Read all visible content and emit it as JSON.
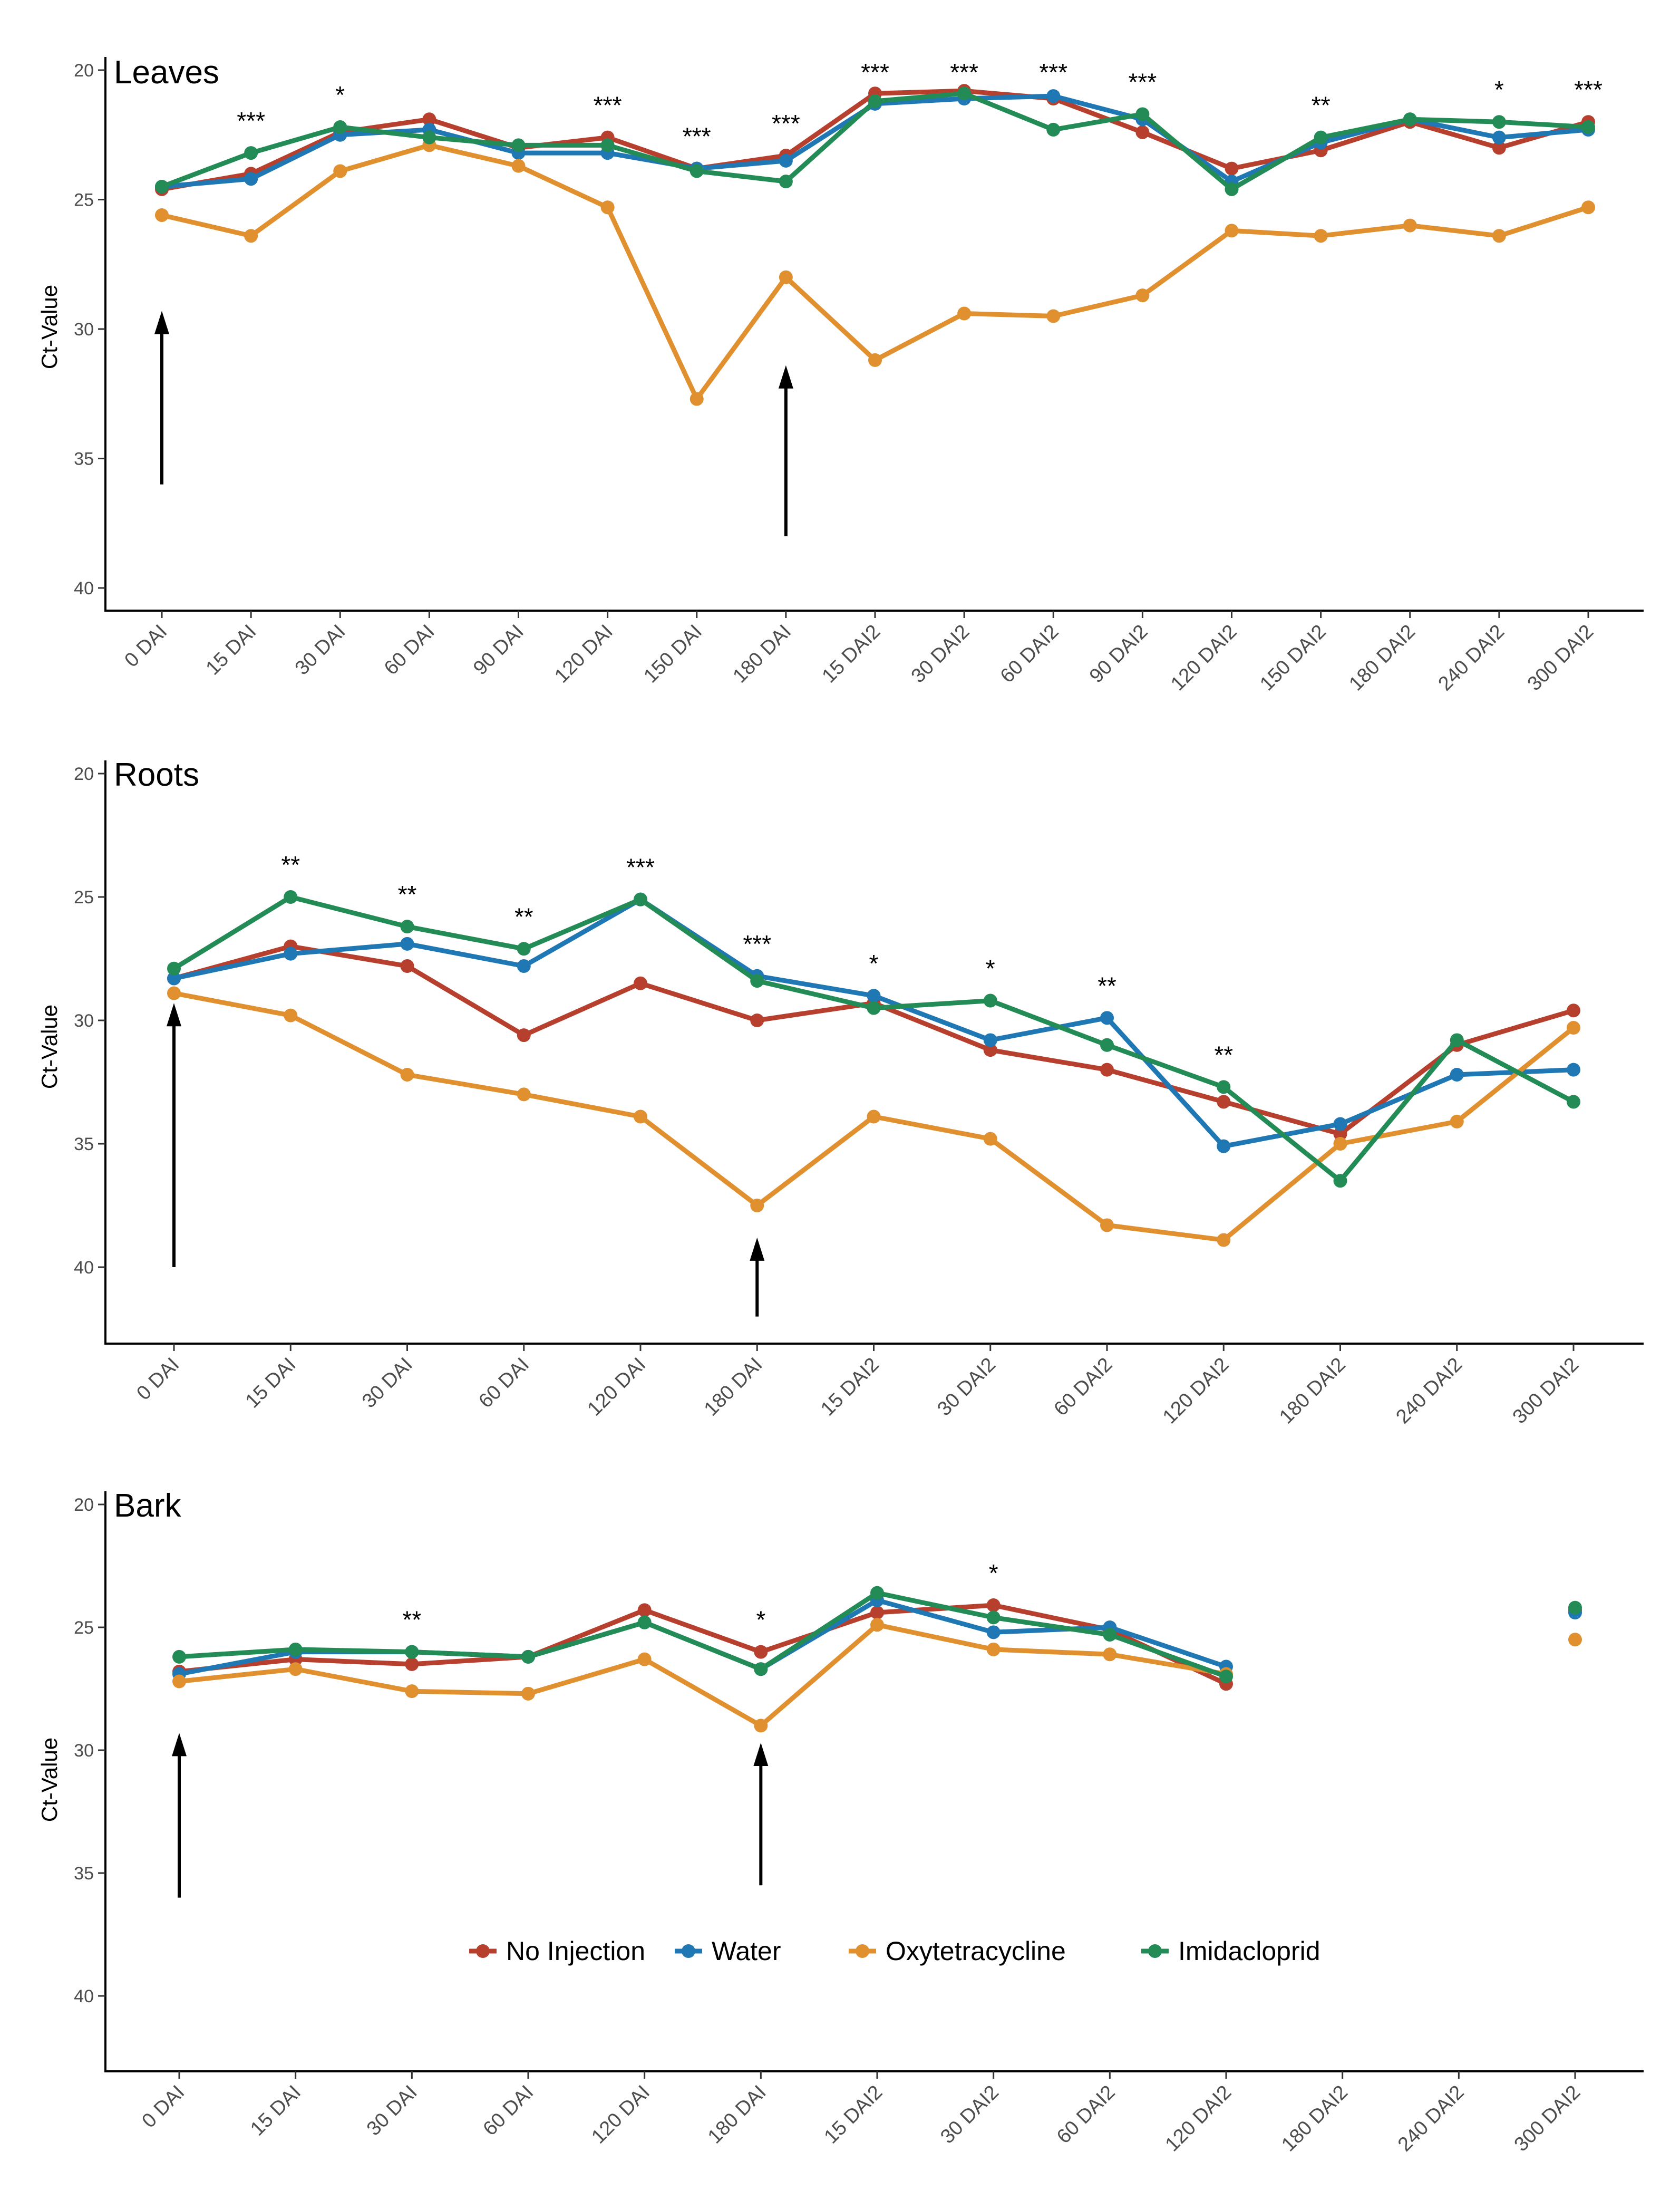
{
  "colors": {
    "No Injection": "#b63f2e",
    "Water": "#1f78b4",
    "Oxytetracycline": "#e0902e",
    "Imidacloprid": "#238b55"
  },
  "legend": [
    "No Injection",
    "Water",
    "Oxytetracycline",
    "Imidacloprid"
  ],
  "chart_data": [
    {
      "type": "line",
      "title": "Leaves",
      "ylabel": "Ct-Value",
      "ylim": [
        20,
        40
      ],
      "y_reversed": true,
      "yticks": [
        20,
        25,
        30,
        35,
        40
      ],
      "categories": [
        "0 DAI",
        "15 DAI",
        "30 DAI",
        "60 DAI",
        "90 DAI",
        "120 DAI",
        "150 DAI",
        "180 DAI",
        "15 DAI2",
        "30 DAI2",
        "60 DAI2",
        "90 DAI2",
        "120 DAI2",
        "150 DAI2",
        "180 DAI2",
        "240 DAI2",
        "300 DAI2"
      ],
      "significance": [
        "",
        "***",
        "*",
        "",
        "",
        "***",
        "***",
        "***",
        "***",
        "***",
        "***",
        "***",
        "",
        "**",
        "",
        "*",
        "***"
      ],
      "arrows_at": [
        [
          0,
          36
        ],
        [
          7,
          38
        ]
      ],
      "series": [
        {
          "name": "No Injection",
          "values": [
            24.6,
            24.0,
            22.4,
            21.9,
            23.0,
            22.6,
            23.8,
            23.3,
            20.9,
            20.8,
            21.1,
            22.4,
            23.8,
            23.1,
            22.0,
            23.0,
            22.0
          ]
        },
        {
          "name": "Water",
          "values": [
            24.5,
            24.2,
            22.5,
            22.3,
            23.2,
            23.2,
            23.8,
            23.5,
            21.3,
            21.1,
            21.0,
            21.9,
            24.3,
            22.8,
            21.9,
            22.6,
            22.3
          ]
        },
        {
          "name": "Oxytetracycline",
          "values": [
            25.6,
            26.4,
            23.9,
            22.9,
            23.7,
            25.3,
            32.7,
            28.0,
            31.2,
            29.4,
            29.5,
            28.7,
            26.2,
            26.4,
            26.0,
            26.4,
            25.3
          ]
        },
        {
          "name": "Imidacloprid",
          "values": [
            24.5,
            23.2,
            22.2,
            22.6,
            22.9,
            22.9,
            23.9,
            24.3,
            21.2,
            20.9,
            22.3,
            21.7,
            24.6,
            22.6,
            21.9,
            22.0,
            22.2
          ]
        }
      ]
    },
    {
      "type": "line",
      "title": "Roots",
      "ylabel": "Ct-Value",
      "ylim": [
        20,
        40
      ],
      "y_reversed": true,
      "yticks": [
        20,
        25,
        30,
        35,
        40
      ],
      "categories": [
        "0 DAI",
        "15 DAI",
        "30 DAI",
        "60 DAI",
        "120 DAI",
        "180 DAI",
        "15 DAI2",
        "30 DAI2",
        "60 DAI2",
        "120 DAI2",
        "180 DAI2",
        "240 DAI2",
        "300 DAI2"
      ],
      "significance": [
        "",
        "**",
        "**",
        "**",
        "***",
        "***",
        "*",
        "*",
        "**",
        "**",
        "",
        "",
        ""
      ],
      "arrows_at": [
        [
          0,
          40
        ],
        [
          5,
          42
        ]
      ],
      "series": [
        {
          "name": "No Injection",
          "values": [
            28.3,
            27.0,
            27.8,
            30.6,
            28.5,
            30.0,
            29.3,
            31.2,
            32.0,
            33.3,
            34.6,
            31.0,
            29.6
          ]
        },
        {
          "name": "Water",
          "values": [
            28.3,
            27.3,
            26.9,
            27.8,
            25.1,
            28.2,
            29.0,
            30.8,
            29.9,
            35.1,
            34.2,
            32.2,
            32.0
          ]
        },
        {
          "name": "Oxytetracycline",
          "values": [
            28.9,
            29.8,
            32.2,
            33.0,
            33.9,
            37.5,
            33.9,
            34.8,
            38.3,
            38.9,
            35.0,
            34.1,
            30.3
          ]
        },
        {
          "name": "Imidacloprid",
          "values": [
            27.9,
            25.0,
            26.2,
            27.1,
            25.1,
            28.4,
            29.5,
            29.2,
            31.0,
            32.7,
            36.5,
            30.8,
            33.3
          ]
        }
      ]
    },
    {
      "type": "line",
      "title": "Bark",
      "ylabel": "Ct-Value",
      "ylim": [
        20,
        40
      ],
      "y_reversed": true,
      "yticks": [
        20,
        25,
        30,
        35,
        40
      ],
      "categories": [
        "0 DAI",
        "15 DAI",
        "30 DAI",
        "60 DAI",
        "120 DAI",
        "180 DAI",
        "15 DAI2",
        "30 DAI2",
        "60 DAI2",
        "120 DAI2",
        "180 DAI2",
        "240 DAI2",
        "300 DAI2"
      ],
      "significance": [
        "",
        "",
        "**",
        "",
        "",
        "*",
        "",
        "*",
        "",
        "",
        "",
        "",
        ""
      ],
      "arrows_at": [
        [
          0,
          36
        ],
        [
          5,
          35.5
        ]
      ],
      "legend_position": "bottom-center",
      "series": [
        {
          "name": "No Injection",
          "values": [
            26.8,
            26.3,
            26.5,
            26.2,
            24.3,
            26.0,
            24.4,
            24.1,
            25.1,
            27.3,
            null,
            null,
            24.3
          ]
        },
        {
          "name": "Water",
          "values": [
            26.9,
            26.0,
            26.0,
            26.2,
            24.8,
            26.7,
            23.9,
            25.2,
            25.0,
            26.6,
            null,
            null,
            24.4
          ]
        },
        {
          "name": "Oxytetracycline",
          "values": [
            27.2,
            26.7,
            27.6,
            27.7,
            26.3,
            29.0,
            24.9,
            25.9,
            26.1,
            26.9,
            null,
            null,
            25.5
          ]
        },
        {
          "name": "Imidacloprid",
          "values": [
            26.2,
            25.9,
            26.0,
            26.2,
            24.8,
            26.7,
            23.6,
            24.6,
            25.3,
            27.0,
            null,
            null,
            24.2
          ]
        }
      ]
    }
  ]
}
